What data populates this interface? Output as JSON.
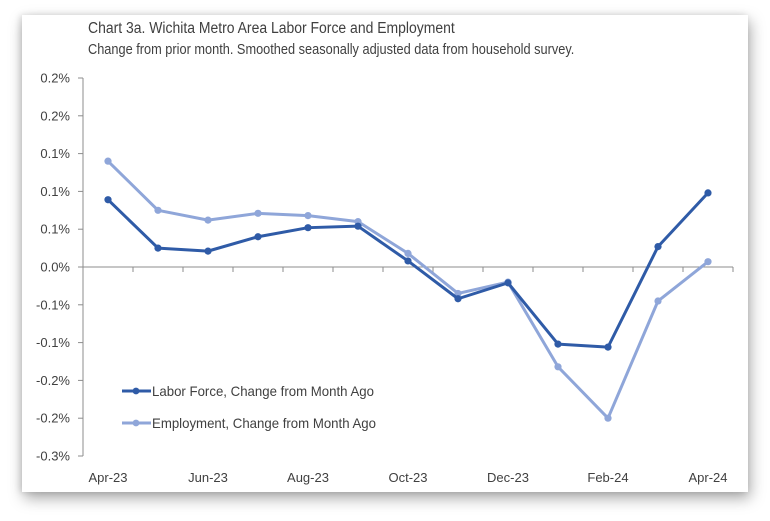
{
  "chart_data": {
    "type": "line",
    "title": "Chart 3a. Wichita Metro Area Labor Force and Employment",
    "subtitle": "Change from prior month. Smoothed seasonally adjusted data from household survey.",
    "xlabel": "",
    "ylabel": "",
    "categories": [
      "Apr-23",
      "May-23",
      "Jun-23",
      "Jul-23",
      "Aug-23",
      "Sep-23",
      "Oct-23",
      "Nov-23",
      "Dec-23",
      "Jan-24",
      "Feb-24",
      "Mar-24",
      "Apr-24"
    ],
    "x_tick_labels": [
      "Apr-23",
      "",
      "Jun-23",
      "",
      "Aug-23",
      "",
      "Oct-23",
      "",
      "Dec-23",
      "",
      "Feb-24",
      "",
      "Apr-24"
    ],
    "y_ticks": [
      0.25,
      0.2,
      0.15,
      0.1,
      0.05,
      0.0,
      -0.05,
      -0.1,
      -0.15,
      -0.2,
      -0.25
    ],
    "y_tick_labels": [
      "0.2%",
      "0.2%",
      "0.1%",
      "0.1%",
      "0.1%",
      "0.0%",
      "-0.1%",
      "-0.1%",
      "-0.2%",
      "-0.2%",
      "-0.3%"
    ],
    "ylim": [
      -0.25,
      0.25
    ],
    "grid": false,
    "legend_position": "bottom-left",
    "series": [
      {
        "name": "Labor Force, Change from Month Ago",
        "color": "#2F5BA7",
        "values": [
          0.089,
          0.025,
          0.021,
          0.04,
          0.052,
          0.054,
          0.008,
          -0.042,
          -0.021,
          -0.102,
          -0.106,
          0.027,
          0.098
        ]
      },
      {
        "name": "Employment, Change from Month Ago",
        "color": "#8FA6D9",
        "values": [
          0.14,
          0.075,
          0.062,
          0.071,
          0.068,
          0.06,
          0.018,
          -0.035,
          -0.02,
          -0.132,
          -0.2,
          -0.045,
          0.007
        ]
      }
    ]
  }
}
